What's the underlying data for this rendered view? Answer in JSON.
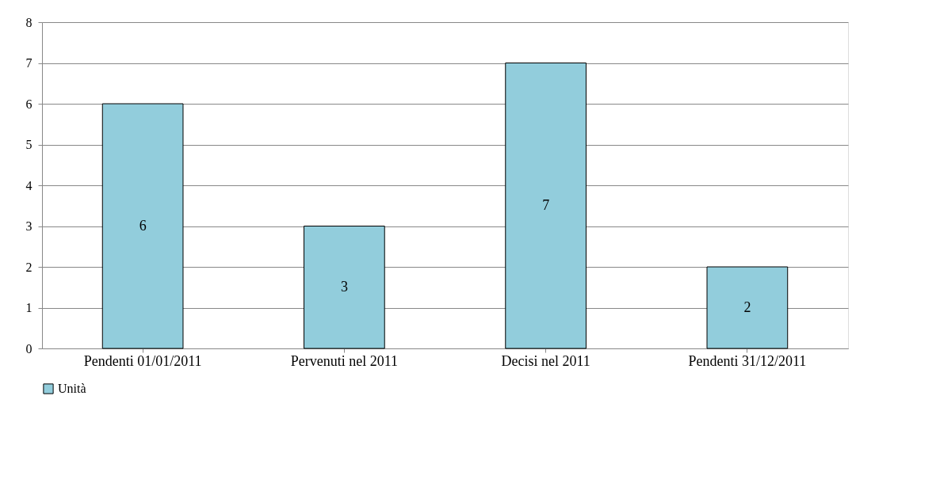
{
  "chart_data": {
    "type": "bar",
    "categories": [
      "Pendenti 01/01/2011",
      "Pervenuti nel 2011",
      "Decisi nel 2011",
      "Pendenti 31/12/2011"
    ],
    "series": [
      {
        "name": "Unità",
        "color": "#92cddc",
        "values": [
          6,
          3,
          7,
          2
        ]
      }
    ],
    "ylim": [
      0,
      8
    ],
    "yticks": [
      0,
      1,
      2,
      3,
      4,
      5,
      6,
      7,
      8
    ],
    "grid": "y",
    "legend": "bottom",
    "data_labels": true
  }
}
